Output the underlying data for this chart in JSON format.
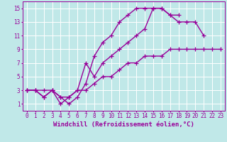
{
  "bg_color": "#c0e8e8",
  "grid_color": "#b0d8d8",
  "line_color": "#990099",
  "marker": "+",
  "markersize": 4,
  "linewidth": 1.0,
  "xlabel": "Windchill (Refroidissement éolien,°C)",
  "xlim": [
    -0.5,
    23.5
  ],
  "ylim": [
    0,
    16
  ],
  "xticks": [
    0,
    1,
    2,
    3,
    4,
    5,
    6,
    7,
    8,
    9,
    10,
    11,
    12,
    13,
    14,
    15,
    16,
    17,
    18,
    19,
    20,
    21,
    22,
    23
  ],
  "yticks": [
    1,
    3,
    5,
    7,
    9,
    11,
    13,
    15
  ],
  "line1_x": [
    0,
    1,
    2,
    3,
    4,
    5,
    6,
    7,
    8,
    9,
    10,
    11,
    12,
    13,
    14,
    15,
    16,
    17,
    18,
    19,
    20,
    21,
    22,
    23
  ],
  "line1_y": [
    3,
    3,
    3,
    3,
    2,
    1,
    2,
    4,
    8,
    10,
    11,
    13,
    14,
    15,
    15,
    15,
    15,
    14,
    14,
    null,
    null,
    null,
    null,
    null
  ],
  "line2_x": [
    0,
    1,
    2,
    3,
    4,
    5,
    6,
    7,
    8,
    9,
    10,
    11,
    12,
    13,
    14,
    15,
    16,
    17,
    18,
    19,
    20,
    21,
    22,
    23
  ],
  "line2_y": [
    3,
    3,
    2,
    3,
    1,
    2,
    3,
    7,
    5,
    7,
    8,
    9,
    10,
    11,
    12,
    15,
    15,
    14,
    13,
    13,
    13,
    11,
    null,
    null
  ],
  "line3_x": [
    0,
    1,
    2,
    3,
    4,
    5,
    6,
    7,
    8,
    9,
    10,
    11,
    12,
    13,
    14,
    15,
    16,
    17,
    18,
    19,
    20,
    21,
    22,
    23
  ],
  "line3_y": [
    3,
    3,
    2,
    3,
    2,
    2,
    3,
    3,
    4,
    5,
    5,
    6,
    7,
    7,
    8,
    8,
    8,
    9,
    9,
    9,
    9,
    9,
    9,
    9
  ],
  "tick_fontsize": 5.5,
  "label_fontsize": 6.5
}
